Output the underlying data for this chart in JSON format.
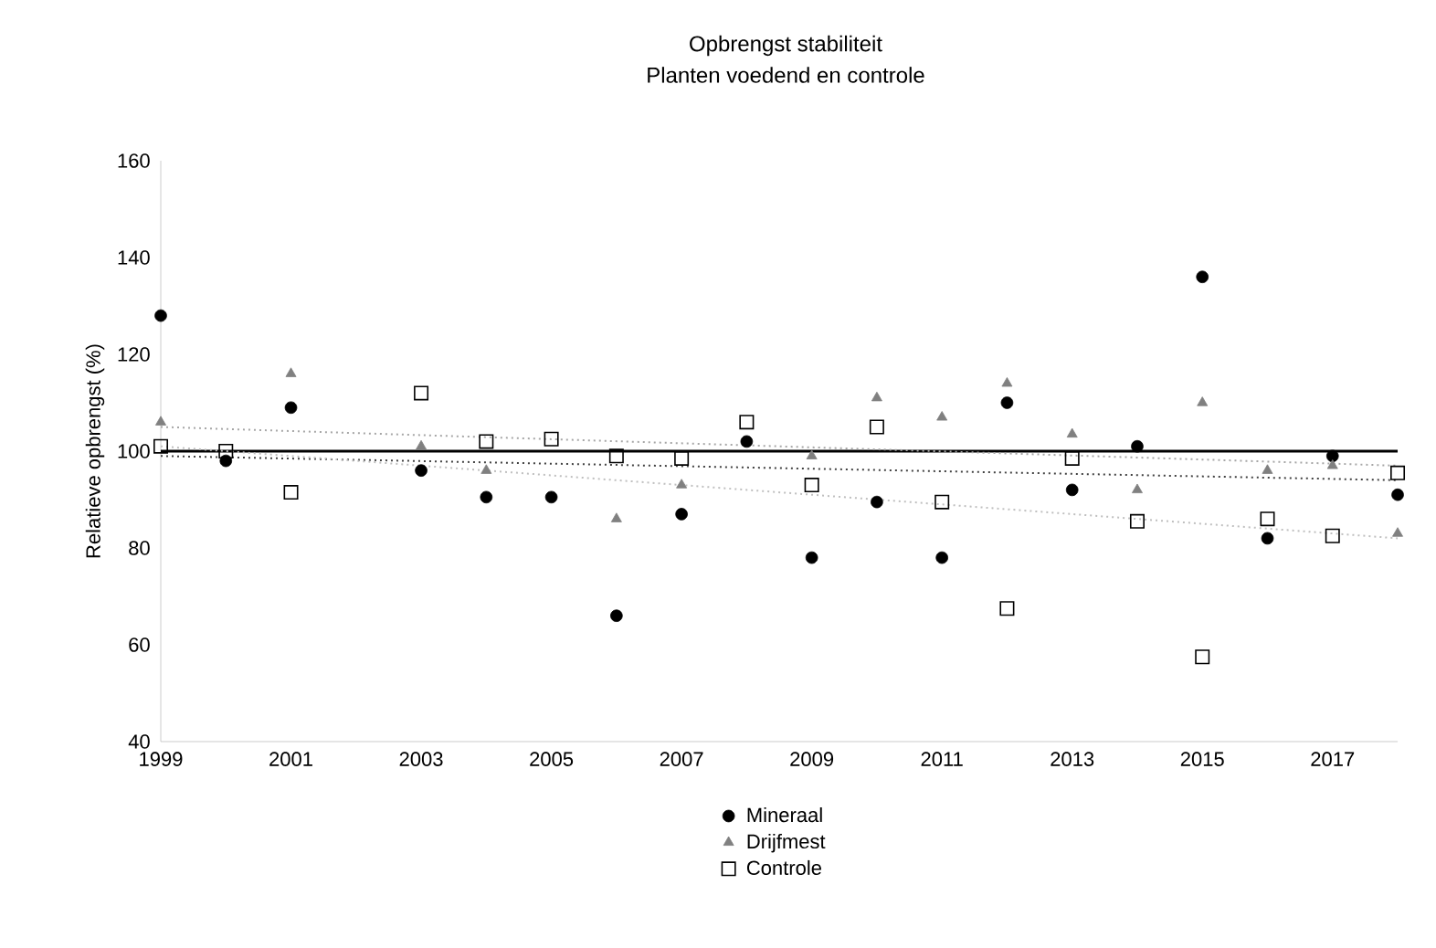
{
  "chart_data": {
    "type": "scatter",
    "title": "Opbrengst stabiliteit",
    "subtitle": "Planten voedend en controle",
    "ylabel": "Relatieve opbrengst (%)",
    "xlim": [
      1999,
      2018
    ],
    "xticks": [
      1999,
      2001,
      2003,
      2005,
      2007,
      2009,
      2011,
      2013,
      2015,
      2017
    ],
    "ylim": [
      40,
      160
    ],
    "yticks": [
      40,
      60,
      80,
      100,
      120,
      140,
      160
    ],
    "grid": false,
    "legend": "bottom",
    "ref_lines": [
      {
        "axis": "y",
        "value": 100,
        "color": "#000000",
        "line_style": "solid"
      }
    ],
    "series": [
      {
        "name": "Mineraal",
        "marker": "circle",
        "color": "#000000",
        "x": [
          1999,
          2000,
          2001,
          2003,
          2004,
          2005,
          2006,
          2007,
          2008,
          2009,
          2010,
          2011,
          2012,
          2013,
          2014,
          2015,
          2016,
          2017,
          2018
        ],
        "values": [
          128,
          98,
          109,
          96,
          90.5,
          90.5,
          66,
          87,
          102,
          78,
          89.5,
          78,
          110,
          92,
          101,
          136,
          82,
          99,
          91
        ]
      },
      {
        "name": "Drijfmest",
        "marker": "triangle",
        "color": "#808080",
        "x": [
          1999,
          2000,
          2001,
          2003,
          2004,
          2005,
          2006,
          2007,
          2008,
          2009,
          2010,
          2011,
          2012,
          2013,
          2014,
          2015,
          2016,
          2017,
          2018
        ],
        "values": [
          106,
          null,
          116,
          101,
          96,
          null,
          86,
          93,
          null,
          99,
          111,
          107,
          114,
          103.5,
          92,
          110,
          96,
          97,
          83
        ]
      },
      {
        "name": "Controle",
        "marker": "square",
        "color": "#000000",
        "x": [
          1999,
          2000,
          2001,
          2003,
          2004,
          2005,
          2006,
          2007,
          2008,
          2009,
          2010,
          2011,
          2012,
          2013,
          2014,
          2015,
          2016,
          2017,
          2018
        ],
        "values": [
          101,
          100,
          91.5,
          112,
          102,
          102.5,
          99,
          98.5,
          106,
          93,
          105,
          89.5,
          67.5,
          98.5,
          85.5,
          57.5,
          86,
          82.5,
          95.5
        ]
      },
      {
        "type": "line",
        "line_style": "dotted",
        "marker": "none",
        "color": "#404040",
        "x": [
          1999,
          2018
        ],
        "values": [
          99,
          94
        ]
      },
      {
        "type": "line",
        "line_style": "dotted",
        "marker": "none",
        "color": "#a6a6a6",
        "x": [
          1999,
          2018
        ],
        "values": [
          105,
          97
        ]
      },
      {
        "type": "line",
        "line_style": "dotted",
        "marker": "none",
        "color": "#bfbfbf",
        "x": [
          1999,
          2018
        ],
        "values": [
          101,
          82
        ]
      }
    ]
  }
}
